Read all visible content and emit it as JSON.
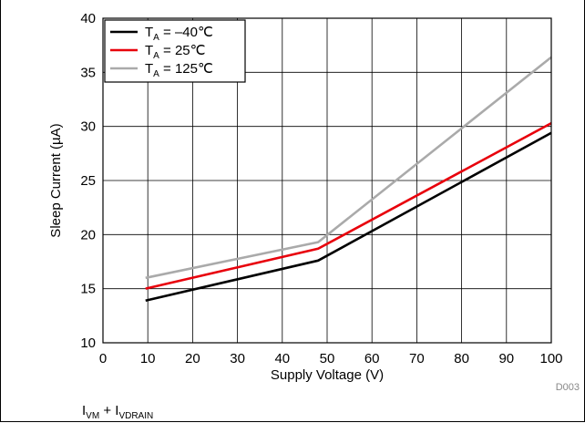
{
  "chart_data": {
    "type": "line",
    "xlabel": "Supply Voltage (V)",
    "ylabel": "Sleep Current (µA)",
    "xlim": [
      0,
      100
    ],
    "ylim": [
      10,
      40
    ],
    "xticks": [
      0,
      10,
      20,
      30,
      40,
      50,
      60,
      70,
      80,
      90,
      100
    ],
    "yticks": [
      10,
      15,
      20,
      25,
      30,
      35,
      40
    ],
    "grid": true,
    "legend_position": "top-left",
    "figure_id": "D003",
    "series": [
      {
        "name": "T_A = –40℃",
        "label_sub": "A",
        "label_rest": " = –40℃",
        "color": "#000000",
        "x": [
          9.5,
          48,
          100
        ],
        "y": [
          13.9,
          17.6,
          29.4
        ]
      },
      {
        "name": "T_A = 25℃",
        "label_sub": "A",
        "label_rest": " = 25℃",
        "color": "#e8000b",
        "x": [
          9.5,
          48,
          100
        ],
        "y": [
          15.0,
          18.7,
          30.3
        ]
      },
      {
        "name": "T_A = 125℃",
        "label_sub": "A",
        "label_rest": " = 125℃",
        "color": "#aaaaaa",
        "x": [
          9.5,
          48,
          100
        ],
        "y": [
          16.0,
          19.3,
          36.4
        ]
      }
    ]
  },
  "caption": {
    "main1": "I",
    "sub1": "VM",
    "plus": " + I",
    "sub2": "VDRAIN"
  }
}
